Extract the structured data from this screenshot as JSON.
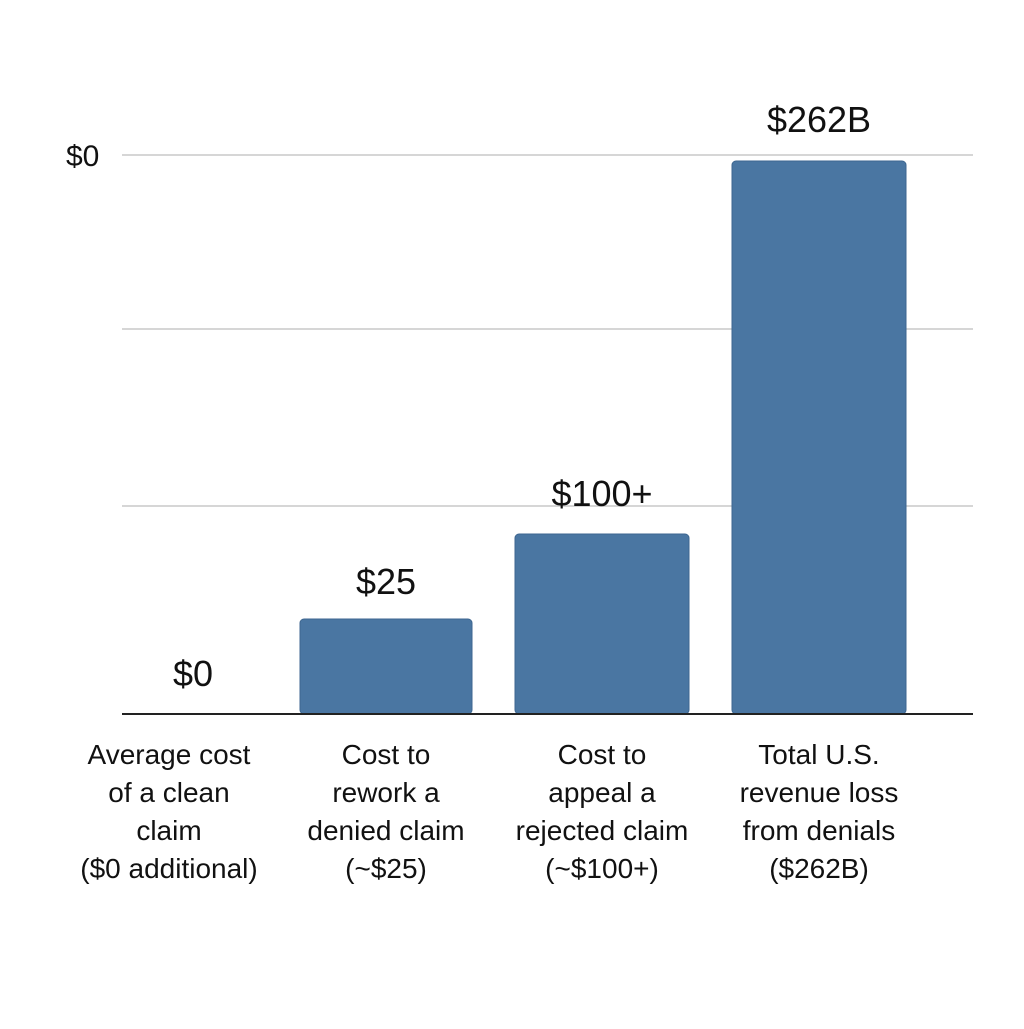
{
  "chart_data": {
    "type": "bar",
    "categories": [
      [
        "Average cost",
        "of a clean",
        "claim",
        "($0 additional)"
      ],
      [
        "Cost to",
        "rework a",
        "denied claim",
        "(~$25)"
      ],
      [
        "Cost to",
        "appeal a",
        "rejected claim",
        "(~$100+)"
      ],
      [
        "Total U.S.",
        "revenue loss",
        "from denials",
        "($262B)"
      ]
    ],
    "values": [
      0,
      25,
      100,
      262
    ],
    "data_labels": [
      "$0",
      "$25",
      "$100+",
      "$262B"
    ],
    "y_tick_labels": [
      "$0"
    ],
    "bar_color": "#4a76a2",
    "grid": true,
    "gridline_count": 3,
    "legend": "none"
  }
}
